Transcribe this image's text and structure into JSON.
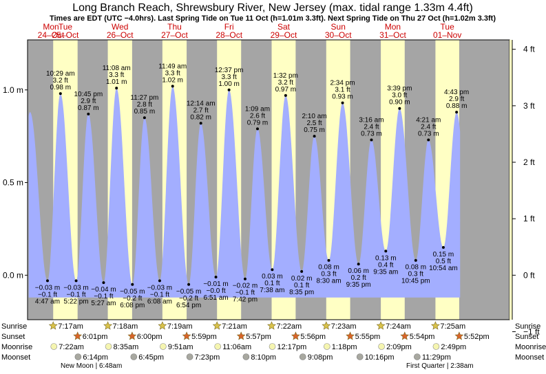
{
  "chart_data": {
    "type": "area",
    "title": "Long Branch Reach, Shrewsbury River, New Jersey (max. tidal range 1.33m 4.4ft)",
    "subtitle": "Times are EDT (UTC −4.0hrs). Last Spring Tide on Tue 11 Oct (h=1.01m 3.3ft). Next Spring Tide on Thu 27 Oct (h=1.02m 3.3ft)",
    "y_unit_left": "m",
    "y_unit_right": "ft",
    "ylim_m": [
      -0.24,
      1.27
    ],
    "left_ticks": [
      "1.0 m",
      "0.5 m",
      "0.0 m"
    ],
    "left_tick_values": [
      1.0,
      0.5,
      0.0
    ],
    "right_ticks": [
      "4 ft",
      "3 ft",
      "2 ft",
      "1 ft",
      "0 ft",
      "−1 ft"
    ],
    "right_tick_values_ft": [
      4,
      3,
      2,
      1,
      0,
      -1
    ],
    "x_start_hours": -4,
    "x_end_hours": 208,
    "days": [
      {
        "dow": "Mon",
        "date": "24–Oct",
        "sunrise_h": -20.0,
        "sunset_h": -5.5
      },
      {
        "dow": "Tue",
        "date": "25–Oct",
        "sunrise_h": 7.28,
        "sunset_h": 18.02
      },
      {
        "dow": "Wed",
        "date": "26–Oct",
        "sunrise_h": 31.3,
        "sunset_h": 42.0
      },
      {
        "dow": "Thu",
        "date": "27–Oct",
        "sunrise_h": 55.32,
        "sunset_h": 65.98
      },
      {
        "dow": "Fri",
        "date": "28–Oct",
        "sunrise_h": 79.35,
        "sunset_h": 89.95
      },
      {
        "dow": "Sat",
        "date": "29–Oct",
        "sunrise_h": 103.37,
        "sunset_h": 113.93
      },
      {
        "dow": "Sun",
        "date": "30–Oct",
        "sunrise_h": 127.38,
        "sunset_h": 137.92
      },
      {
        "dow": "Mon",
        "date": "31–Oct",
        "sunrise_h": 151.4,
        "sunset_h": 161.9
      },
      {
        "dow": "Tue",
        "date": "01–Nov",
        "sunrise_h": 175.42,
        "sunset_h": 185.87
      }
    ],
    "tides": [
      {
        "type": "high",
        "t": -2.9,
        "m": 0.88,
        "label": []
      },
      {
        "type": "low",
        "t": 4.78,
        "m": -0.03,
        "label": [
          "−0.03 m",
          "−0.1 ft",
          "4:47 am"
        ]
      },
      {
        "type": "high",
        "t": 10.48,
        "m": 0.98,
        "label": [
          "10:29 am",
          "3.2 ft",
          "0.98 m"
        ]
      },
      {
        "type": "low",
        "t": 17.37,
        "m": -0.03,
        "label": [
          "−0.03 m",
          "−0.1 ft",
          "5:22 pm"
        ]
      },
      {
        "type": "high",
        "t": 22.75,
        "m": 0.87,
        "label": [
          "10:45 pm",
          "2.9 ft",
          "0.87 m"
        ]
      },
      {
        "type": "low",
        "t": 29.45,
        "m": -0.04,
        "label": [
          "−0.04 m",
          "−0.1 ft",
          "5:27 am"
        ]
      },
      {
        "type": "high",
        "t": 35.13,
        "m": 1.01,
        "label": [
          "11:08 am",
          "3.3 ft",
          "1.01 m"
        ]
      },
      {
        "type": "low",
        "t": 42.13,
        "m": -0.05,
        "label": [
          "−0.05 m",
          "−0.2 ft",
          "6:08 pm"
        ]
      },
      {
        "type": "high",
        "t": 47.45,
        "m": 0.85,
        "label": [
          "11:27 pm",
          "2.8 ft",
          "0.85 m"
        ]
      },
      {
        "type": "low",
        "t": 54.13,
        "m": -0.03,
        "label": [
          "−0.03 m",
          "−0.1 ft",
          "6:08 am"
        ]
      },
      {
        "type": "high",
        "t": 59.82,
        "m": 1.02,
        "label": [
          "11:49 am",
          "3.3 ft",
          "1.02 m"
        ]
      },
      {
        "type": "low",
        "t": 66.9,
        "m": -0.05,
        "label": [
          "−0.05 m",
          "−0.2 ft",
          "6:54 pm"
        ]
      },
      {
        "type": "high",
        "t": 72.23,
        "m": 0.82,
        "label": [
          "12:14 am",
          "2.7 ft",
          "0.82 m"
        ]
      },
      {
        "type": "low",
        "t": 78.85,
        "m": -0.01,
        "label": [
          "−0.01 m",
          "−0.0 ft",
          "6:51 am"
        ]
      },
      {
        "type": "high",
        "t": 84.62,
        "m": 1.0,
        "label": [
          "12:37 pm",
          "3.3 ft",
          "1.00 m"
        ]
      },
      {
        "type": "low",
        "t": 91.7,
        "m": -0.02,
        "label": [
          "−0.02 m",
          "−0.1 ft",
          "7:42 pm"
        ]
      },
      {
        "type": "high",
        "t": 97.15,
        "m": 0.79,
        "label": [
          "1:09 am",
          "2.6 ft",
          "0.79 m"
        ]
      },
      {
        "type": "low",
        "t": 103.63,
        "m": 0.03,
        "label": [
          "0.03 m",
          "0.1 ft",
          "7:38 am"
        ]
      },
      {
        "type": "high",
        "t": 109.53,
        "m": 0.97,
        "label": [
          "1:32 pm",
          "3.2 ft",
          "0.97 m"
        ]
      },
      {
        "type": "low",
        "t": 116.58,
        "m": 0.02,
        "label": [
          "0.02 m",
          "0.1 ft",
          "8:35 pm"
        ]
      },
      {
        "type": "high",
        "t": 122.17,
        "m": 0.75,
        "label": [
          "2:10 am",
          "2.5 ft",
          "0.75 m"
        ]
      },
      {
        "type": "low",
        "t": 128.5,
        "m": 0.08,
        "label": [
          "0.08 m",
          "0.3 ft",
          "8:30 am"
        ]
      },
      {
        "type": "high",
        "t": 134.57,
        "m": 0.93,
        "label": [
          "2:34 pm",
          "3.1 ft",
          "0.93 m"
        ]
      },
      {
        "type": "low",
        "t": 141.58,
        "m": 0.06,
        "label": [
          "0.06 m",
          "0.2 ft",
          "9:35 pm"
        ]
      },
      {
        "type": "high",
        "t": 147.27,
        "m": 0.73,
        "label": [
          "3:16 am",
          "2.4 ft",
          "0.73 m"
        ]
      },
      {
        "type": "low",
        "t": 153.58,
        "m": 0.13,
        "label": [
          "0.13 m",
          "0.4 ft",
          "9:35 am"
        ]
      },
      {
        "type": "high",
        "t": 159.65,
        "m": 0.9,
        "label": [
          "3:39 pm",
          "3.0 ft",
          "0.90 m"
        ]
      },
      {
        "type": "low",
        "t": 166.75,
        "m": 0.08,
        "label": [
          "0.08 m",
          "0.3 ft",
          "10:45 pm"
        ]
      },
      {
        "type": "high",
        "t": 172.35,
        "m": 0.73,
        "label": [
          "4:21 am",
          "2.4 ft",
          "0.73 m"
        ]
      },
      {
        "type": "low",
        "t": 178.9,
        "m": 0.15,
        "label": [
          "0.15 m",
          "0.5 ft",
          "10:54 am"
        ]
      },
      {
        "type": "high",
        "t": 184.72,
        "m": 0.88,
        "label": [
          "4:43 pm",
          "2.9 ft",
          "0.88 m"
        ]
      }
    ],
    "rows": {
      "sunrise": [
        "7:17am",
        "7:18am",
        "7:19am",
        "7:21am",
        "7:22am",
        "7:23am",
        "7:24am",
        "7:25am"
      ],
      "sunset": [
        "6:01pm",
        "6:00pm",
        "5:59pm",
        "5:57pm",
        "5:56pm",
        "5:55pm",
        "5:54pm",
        "5:52pm"
      ],
      "moonrise": [
        "7:22am",
        "8:35am",
        "9:51am",
        "11:06am",
        "12:17pm",
        "1:18pm",
        "2:09pm",
        "2:49pm"
      ],
      "moonset": [
        "6:14pm",
        "6:45pm",
        "7:23pm",
        "8:10pm",
        "9:08pm",
        "10:16pm",
        "11:29pm"
      ]
    },
    "row_labels": {
      "sunrise": "Sunrise",
      "sunset": "Sunset",
      "moonrise": "Moonrise",
      "moonset": "Moonset"
    },
    "moon_phases": [
      "New Moon | 6:48am",
      "First Quarter | 2:38am"
    ],
    "colors": {
      "night": "#a5a5a5",
      "day": "#ffffc4",
      "tide": "#a3aeff",
      "day_label": "#cc0000",
      "sun_star": "#d9c24a",
      "sunset_star": "#d9642a",
      "moonrise": "#f5f5b0",
      "moonset": "#a8a8a0"
    }
  }
}
